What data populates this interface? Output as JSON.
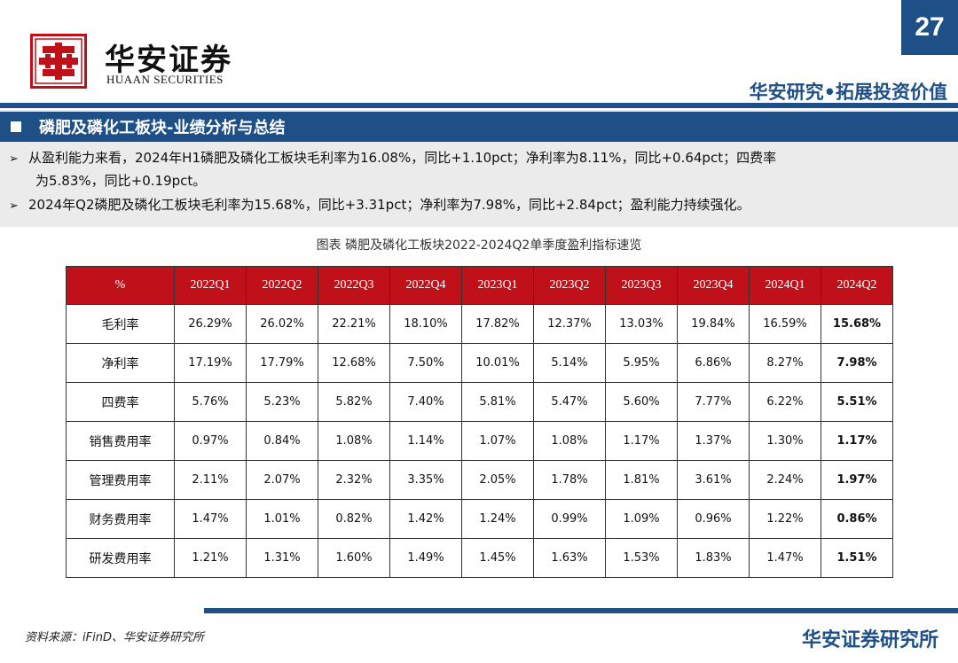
{
  "header": {
    "logo_cn": "华安证券",
    "logo_en": "HUAAN SECURITIES",
    "page_number": "27",
    "slogan": "华安研究•拓展投资价值"
  },
  "section": {
    "title": "磷肥及磷化工板块-业绩分析与总结"
  },
  "bullets": [
    {
      "line1": "从盈利能力来看，2024年H1磷肥及磷化工板块毛利率为16.08%，同比+1.10pct；净利率为8.11%，同比+0.64pct；四费率",
      "line2": "为5.83%，同比+0.19pct。"
    },
    {
      "line1": "2024年Q2磷肥及磷化工板块毛利率为15.68%，同比+3.31pct；净利率为7.98%，同比+2.84pct；盈利能力持续强化。"
    }
  ],
  "table": {
    "caption": "图表  磷肥及磷化工板块2022-2024Q2单季度盈利指标速览",
    "header_unit": "%",
    "columns": [
      "2022Q1",
      "2022Q2",
      "2022Q3",
      "2022Q4",
      "2023Q1",
      "2023Q2",
      "2023Q3",
      "2023Q4",
      "2024Q1",
      "2024Q2"
    ],
    "rows": [
      {
        "label": "毛利率",
        "values": [
          "26.29%",
          "26.02%",
          "22.21%",
          "18.10%",
          "17.82%",
          "12.37%",
          "13.03%",
          "19.84%",
          "16.59%",
          "15.68%"
        ]
      },
      {
        "label": "净利率",
        "values": [
          "17.19%",
          "17.79%",
          "12.68%",
          "7.50%",
          "10.01%",
          "5.14%",
          "5.95%",
          "6.86%",
          "8.27%",
          "7.98%"
        ]
      },
      {
        "label": "四费率",
        "values": [
          "5.76%",
          "5.23%",
          "5.82%",
          "7.40%",
          "5.81%",
          "5.47%",
          "5.60%",
          "7.77%",
          "6.22%",
          "5.51%"
        ]
      },
      {
        "label": "销售费用率",
        "values": [
          "0.97%",
          "0.84%",
          "1.08%",
          "1.14%",
          "1.07%",
          "1.08%",
          "1.17%",
          "1.37%",
          "1.30%",
          "1.17%"
        ]
      },
      {
        "label": "管理费用率",
        "values": [
          "2.11%",
          "2.07%",
          "2.32%",
          "3.35%",
          "2.05%",
          "1.78%",
          "1.81%",
          "3.61%",
          "2.24%",
          "1.97%"
        ]
      },
      {
        "label": "财务费用率",
        "values": [
          "1.47%",
          "1.01%",
          "0.82%",
          "1.42%",
          "1.24%",
          "0.99%",
          "1.09%",
          "0.96%",
          "1.22%",
          "0.86%"
        ]
      },
      {
        "label": "研发费用率",
        "values": [
          "1.21%",
          "1.31%",
          "1.60%",
          "1.49%",
          "1.45%",
          "1.63%",
          "1.53%",
          "1.83%",
          "1.47%",
          "1.51%"
        ]
      }
    ]
  },
  "footer": {
    "source": "资料来源：iFinD、华安证券研究所",
    "brand": "华安证券研究所"
  },
  "colors": {
    "brand_blue": "#1e4f86",
    "table_header_red": "#c0101a",
    "logo_red": "#c0101a"
  }
}
